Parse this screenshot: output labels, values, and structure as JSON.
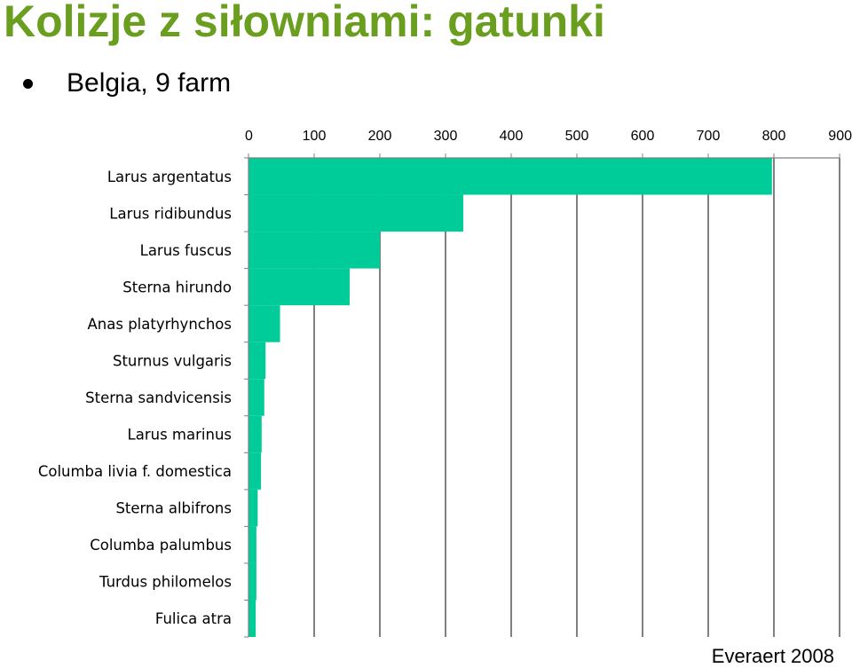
{
  "title": "Kolizje z siłowniami: gatunki",
  "bullet": "Belgia, 9 farm",
  "source": "Everaert 2008",
  "colors": {
    "title": "#6a9e1f",
    "bar": "#00cc99",
    "grid": "#000000"
  },
  "chart_data": {
    "type": "bar",
    "orientation": "horizontal",
    "title": "",
    "xlabel": "",
    "ylabel": "",
    "xlim": [
      0,
      900
    ],
    "x_ticks": [
      0,
      100,
      200,
      300,
      400,
      500,
      600,
      700,
      800,
      900
    ],
    "x_axis_position": "top",
    "grid": true,
    "categories": [
      "Larus argentatus",
      "Larus ridibundus",
      "Larus fuscus",
      "Sterna hirundo",
      "Anas platyrhynchos",
      "Sturnus vulgaris",
      "Sterna sandvicensis",
      "Larus marinus",
      "Columba livia f. domestica",
      "Sterna albifrons",
      "Columba palumbus",
      "Turdus philomelos",
      "Fulica atra"
    ],
    "values": [
      797,
      327,
      200,
      154,
      48,
      26,
      24,
      20,
      19,
      14,
      12,
      12,
      11
    ]
  }
}
